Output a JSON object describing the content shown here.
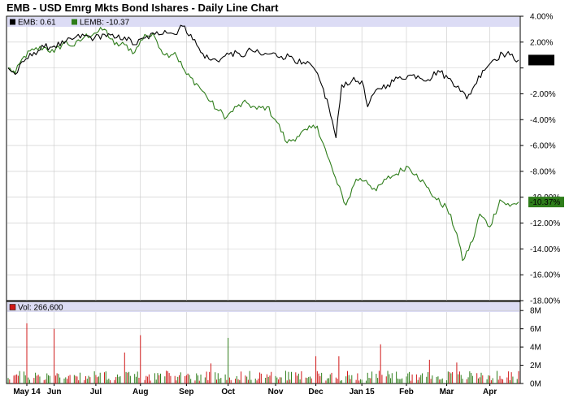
{
  "title": "EMB - USD Emrg Mkts Bond Ishares - Daily Line Chart",
  "colors": {
    "emb": "#000000",
    "lemb": "#2e7d1a",
    "volume_up": "#2e7d1a",
    "volume_down": "#d01818",
    "legend_band": "#dcdcf5",
    "grid": "#c8c8c8"
  },
  "chart_data": [
    {
      "type": "line",
      "title": "EMB - USD Emrg Mkts Bond Ishares - Daily Line Chart",
      "legend": "top-left",
      "grid": true,
      "y_axis_side": "right",
      "ylim": [
        -18,
        4
      ],
      "ytick_values": [
        4,
        2,
        0,
        -2,
        -4,
        -6,
        -8,
        -10,
        -12,
        -14,
        -16,
        -18
      ],
      "ytick_labels": [
        "4.00%",
        "2.00%",
        "",
        "-2.00%",
        "-4.00%",
        "-6.00%",
        "-8.00%",
        "-10.00%",
        "-12.00%",
        "-14.00%",
        "-16.00%",
        "-18.00%"
      ],
      "x_range": [
        "2014-05-01",
        "2015-04-21"
      ],
      "month_ticks": [
        {
          "date": "2014-05-14",
          "label": "May 14"
        },
        {
          "date": "2014-06-02",
          "label": "Jun"
        },
        {
          "date": "2014-07-01",
          "label": "Jul"
        },
        {
          "date": "2014-08-01",
          "label": "Aug"
        },
        {
          "date": "2014-09-02",
          "label": "Sep"
        },
        {
          "date": "2014-10-01",
          "label": "Oct"
        },
        {
          "date": "2014-11-03",
          "label": "Nov"
        },
        {
          "date": "2014-12-01",
          "label": "Dec"
        },
        {
          "date": "2015-01-02",
          "label": "Jan 15"
        },
        {
          "date": "2015-02-02",
          "label": "Feb"
        },
        {
          "date": "2015-03-02",
          "label": "Mar"
        },
        {
          "date": "2015-04-01",
          "label": "Apr"
        }
      ],
      "series": [
        {
          "name": "EMB",
          "legend_label": "EMB: 0.61",
          "last_value_label": "0.61%",
          "points": [
            [
              "2014-05-01",
              0.0
            ],
            [
              "2014-05-06",
              -0.5
            ],
            [
              "2014-05-12",
              0.5
            ],
            [
              "2014-05-19",
              1.2
            ],
            [
              "2014-05-26",
              1.6
            ],
            [
              "2014-06-02",
              1.7
            ],
            [
              "2014-06-09",
              1.9
            ],
            [
              "2014-06-16",
              2.3
            ],
            [
              "2014-06-23",
              2.5
            ],
            [
              "2014-06-30",
              2.3
            ],
            [
              "2014-07-07",
              2.6
            ],
            [
              "2014-07-14",
              2.3
            ],
            [
              "2014-07-21",
              2.4
            ],
            [
              "2014-07-28",
              1.8
            ],
            [
              "2014-08-04",
              2.3
            ],
            [
              "2014-08-11",
              2.6
            ],
            [
              "2014-08-18",
              2.9
            ],
            [
              "2014-08-25",
              2.6
            ],
            [
              "2014-08-29",
              3.3
            ],
            [
              "2014-09-05",
              2.6
            ],
            [
              "2014-09-12",
              1.2
            ],
            [
              "2014-09-19",
              0.6
            ],
            [
              "2014-09-26",
              0.7
            ],
            [
              "2014-10-03",
              1.2
            ],
            [
              "2014-10-10",
              0.9
            ],
            [
              "2014-10-17",
              1.4
            ],
            [
              "2014-10-24",
              1.0
            ],
            [
              "2014-10-31",
              1.1
            ],
            [
              "2014-11-07",
              0.9
            ],
            [
              "2014-11-14",
              0.9
            ],
            [
              "2014-11-21",
              0.3
            ],
            [
              "2014-11-28",
              0.2
            ],
            [
              "2014-12-05",
              -1.3
            ],
            [
              "2014-12-10",
              -3.0
            ],
            [
              "2014-12-15",
              -5.4
            ],
            [
              "2014-12-19",
              -1.3
            ],
            [
              "2014-12-26",
              -1.0
            ],
            [
              "2015-01-02",
              -1.0
            ],
            [
              "2015-01-06",
              -3.0
            ],
            [
              "2015-01-13",
              -1.6
            ],
            [
              "2015-01-20",
              -1.3
            ],
            [
              "2015-01-27",
              -0.8
            ],
            [
              "2015-02-03",
              -0.6
            ],
            [
              "2015-02-10",
              -0.6
            ],
            [
              "2015-02-17",
              -0.9
            ],
            [
              "2015-02-24",
              -0.2
            ],
            [
              "2015-03-03",
              -0.8
            ],
            [
              "2015-03-10",
              -1.4
            ],
            [
              "2015-03-16",
              -2.4
            ],
            [
              "2015-03-20",
              -1.6
            ],
            [
              "2015-03-27",
              -0.2
            ],
            [
              "2015-04-03",
              0.6
            ],
            [
              "2015-04-10",
              1.1
            ],
            [
              "2015-04-15",
              1.0
            ],
            [
              "2015-04-21",
              0.61
            ]
          ]
        },
        {
          "name": "LEMB",
          "legend_label": "LEMB: -10.37",
          "last_value_label": "-10.37%",
          "points": [
            [
              "2014-05-01",
              0.0
            ],
            [
              "2014-05-06",
              -0.4
            ],
            [
              "2014-05-12",
              0.9
            ],
            [
              "2014-05-19",
              1.4
            ],
            [
              "2014-05-26",
              1.6
            ],
            [
              "2014-06-02",
              1.2
            ],
            [
              "2014-06-09",
              2.0
            ],
            [
              "2014-06-16",
              1.7
            ],
            [
              "2014-06-23",
              2.4
            ],
            [
              "2014-06-30",
              2.7
            ],
            [
              "2014-07-07",
              3.0
            ],
            [
              "2014-07-14",
              1.8
            ],
            [
              "2014-07-21",
              1.8
            ],
            [
              "2014-07-28",
              1.2
            ],
            [
              "2014-08-04",
              2.6
            ],
            [
              "2014-08-11",
              2.4
            ],
            [
              "2014-08-18",
              1.0
            ],
            [
              "2014-08-25",
              1.2
            ],
            [
              "2014-09-02",
              -0.5
            ],
            [
              "2014-09-09",
              -1.2
            ],
            [
              "2014-09-16",
              -2.2
            ],
            [
              "2014-09-23",
              -3.2
            ],
            [
              "2014-09-30",
              -3.8
            ],
            [
              "2014-10-07",
              -3.0
            ],
            [
              "2014-10-14",
              -2.7
            ],
            [
              "2014-10-21",
              -3.2
            ],
            [
              "2014-10-28",
              -3.0
            ],
            [
              "2014-11-04",
              -4.2
            ],
            [
              "2014-11-11",
              -5.8
            ],
            [
              "2014-11-18",
              -5.3
            ],
            [
              "2014-11-25",
              -4.8
            ],
            [
              "2014-12-02",
              -4.5
            ],
            [
              "2014-12-09",
              -6.8
            ],
            [
              "2014-12-16",
              -9.0
            ],
            [
              "2014-12-22",
              -10.6
            ],
            [
              "2014-12-29",
              -8.6
            ],
            [
              "2015-01-05",
              -8.7
            ],
            [
              "2015-01-12",
              -9.5
            ],
            [
              "2015-01-19",
              -8.6
            ],
            [
              "2015-01-26",
              -8.2
            ],
            [
              "2015-02-02",
              -7.6
            ],
            [
              "2015-02-09",
              -8.2
            ],
            [
              "2015-02-16",
              -9.2
            ],
            [
              "2015-02-23",
              -10.2
            ],
            [
              "2015-03-02",
              -10.8
            ],
            [
              "2015-03-09",
              -12.8
            ],
            [
              "2015-03-13",
              -14.9
            ],
            [
              "2015-03-20",
              -13.4
            ],
            [
              "2015-03-25",
              -11.3
            ],
            [
              "2015-04-01",
              -12.3
            ],
            [
              "2015-04-08",
              -10.2
            ],
            [
              "2015-04-15",
              -10.7
            ],
            [
              "2015-04-21",
              -10.37
            ]
          ]
        }
      ]
    },
    {
      "type": "bar",
      "legend": "top-left",
      "legend_label": "Vol: 266,600",
      "grid": true,
      "ylim": [
        0,
        9
      ],
      "ytick_values": [
        0,
        2,
        4,
        6,
        8
      ],
      "ytick_labels": [
        "0M",
        "2M",
        "4M",
        "6M",
        "8M"
      ],
      "units": "millions of shares",
      "volume_spikes": [
        {
          "date": "2014-05-14",
          "value": 6.6,
          "direction": "down"
        },
        {
          "date": "2014-06-02",
          "value": 6.0,
          "direction": "down"
        },
        {
          "date": "2014-07-21",
          "value": 3.4,
          "direction": "down"
        },
        {
          "date": "2014-08-01",
          "value": 5.3,
          "direction": "down"
        },
        {
          "date": "2014-09-19",
          "value": 2.2,
          "direction": "down"
        },
        {
          "date": "2014-10-01",
          "value": 5.0,
          "direction": "up"
        },
        {
          "date": "2014-12-01",
          "value": 3.0,
          "direction": "down"
        },
        {
          "date": "2014-12-17",
          "value": 3.0,
          "direction": "down"
        },
        {
          "date": "2015-01-15",
          "value": 4.3,
          "direction": "down"
        },
        {
          "date": "2015-02-18",
          "value": 2.6,
          "direction": "down"
        },
        {
          "date": "2015-03-09",
          "value": 2.3,
          "direction": "down"
        }
      ],
      "typical_volume_range": [
        0.3,
        1.4
      ]
    }
  ]
}
